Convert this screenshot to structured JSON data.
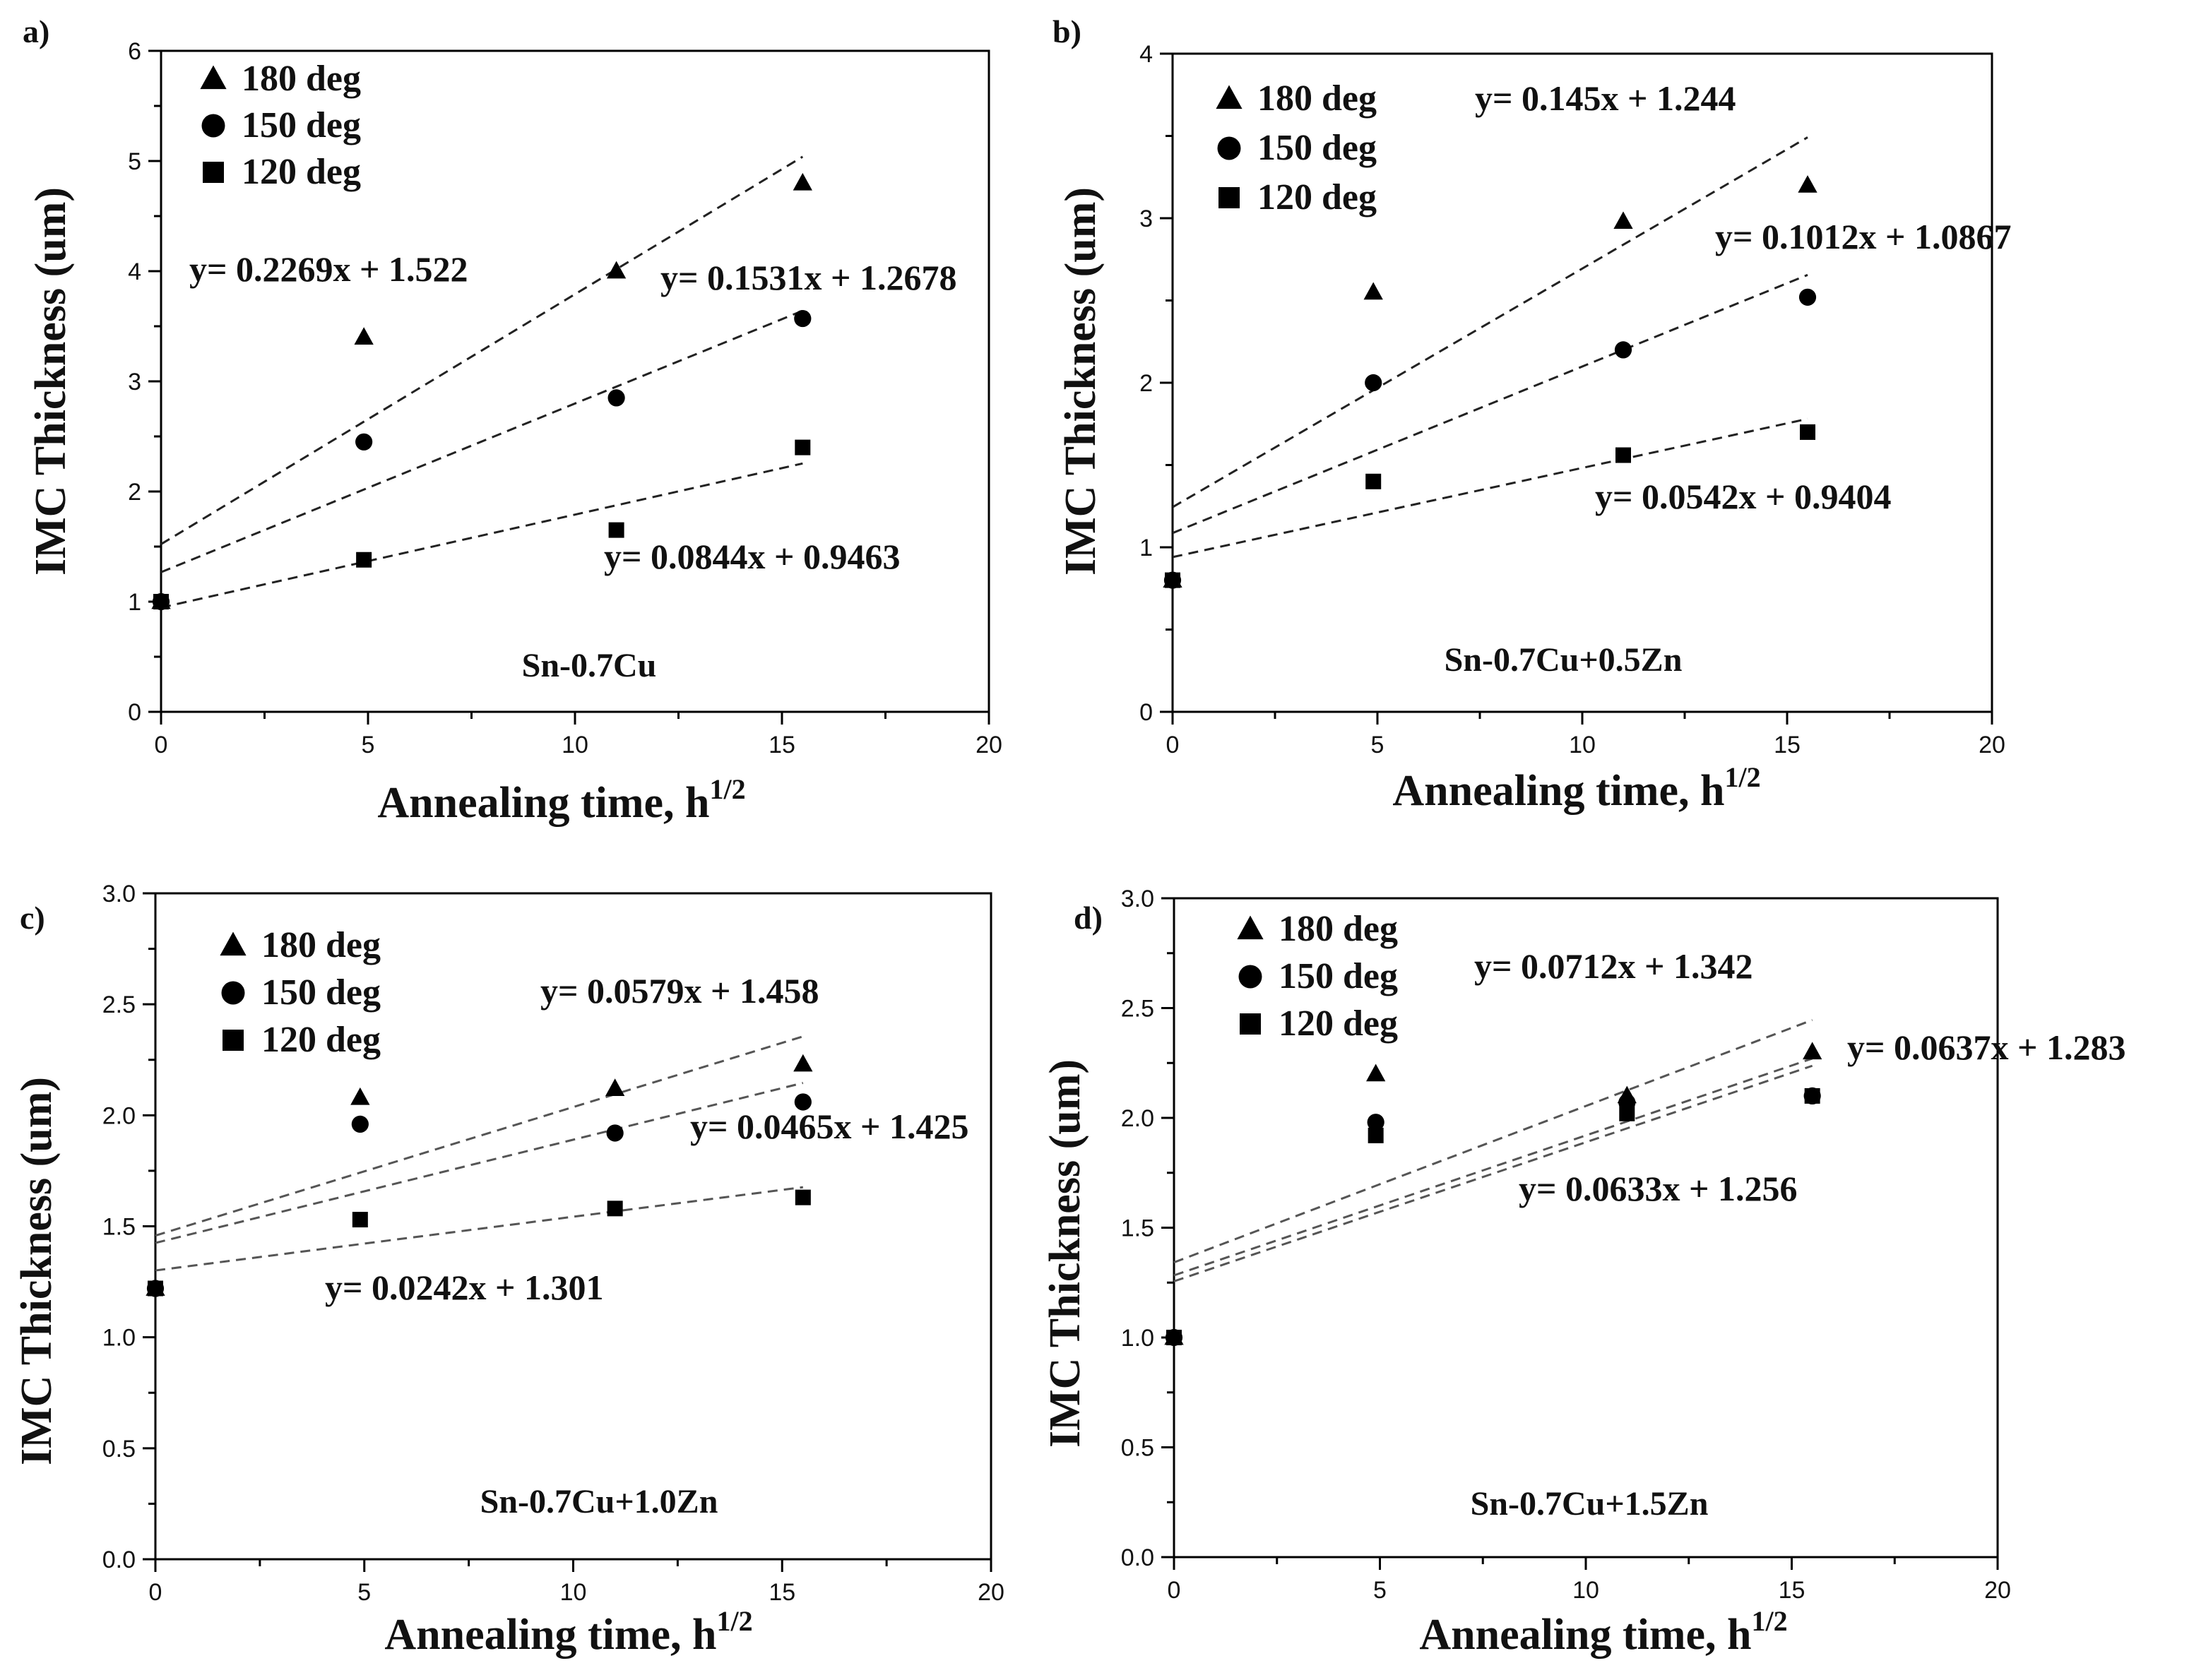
{
  "chart_data": [
    {
      "type": "scatter",
      "panel_label": "a)",
      "title": "Sn-0.7Cu",
      "xlabel": "Annealing time, h",
      "xlabel_sup": "1/2",
      "ylabel": "IMC Thickness (um)",
      "xlim": [
        0,
        20
      ],
      "ylim": [
        0,
        6
      ],
      "xticks": [
        0,
        5,
        10,
        15,
        20
      ],
      "yticks": [
        0,
        1,
        2,
        3,
        4,
        5,
        6
      ],
      "ytick_labels": [
        "0",
        "1",
        "2",
        "3",
        "4",
        "5",
        "6"
      ],
      "legend_position": "top-left",
      "x": [
        0,
        4.9,
        11,
        15.5
      ],
      "series": [
        {
          "name": "180 deg",
          "marker": "triangle",
          "values": [
            1.0,
            3.4,
            4.0,
            4.8
          ],
          "fit": {
            "slope": 0.2269,
            "intercept": 1.522
          },
          "equation": "y= 0.2269x + 1.522"
        },
        {
          "name": "150 deg",
          "marker": "circle",
          "values": [
            1.0,
            2.45,
            2.85,
            3.57
          ],
          "fit": {
            "slope": 0.1531,
            "intercept": 1.2678
          },
          "equation": "y= 0.1531x + 1.2678"
        },
        {
          "name": "120 deg",
          "marker": "square",
          "values": [
            1.0,
            1.38,
            1.65,
            2.4
          ],
          "fit": {
            "slope": 0.0844,
            "intercept": 0.9463
          },
          "equation": "y= 0.0844x + 0.9463"
        }
      ]
    },
    {
      "type": "scatter",
      "panel_label": "b)",
      "title": "Sn-0.7Cu+0.5Zn",
      "xlabel": "Annealing time, h",
      "xlabel_sup": "1/2",
      "ylabel": "IMC Thickness (um)",
      "xlim": [
        0,
        20
      ],
      "ylim": [
        0,
        4
      ],
      "xticks": [
        0,
        5,
        10,
        15,
        20
      ],
      "yticks": [
        0,
        1,
        2,
        3,
        4
      ],
      "ytick_labels": [
        "0",
        "1",
        "2",
        "3",
        "4"
      ],
      "legend_position": "top-left",
      "x": [
        0,
        4.9,
        11,
        15.5
      ],
      "series": [
        {
          "name": "180 deg",
          "marker": "triangle",
          "values": [
            0.8,
            2.55,
            2.98,
            3.2
          ],
          "fit": {
            "slope": 0.145,
            "intercept": 1.244
          },
          "equation": "y= 0.145x + 1.244"
        },
        {
          "name": "150 deg",
          "marker": "circle",
          "values": [
            0.8,
            2.0,
            2.2,
            2.52
          ],
          "fit": {
            "slope": 0.1012,
            "intercept": 1.0867
          },
          "equation": "y= 0.1012x + 1.0867"
        },
        {
          "name": "120 deg",
          "marker": "square",
          "values": [
            0.8,
            1.4,
            1.56,
            1.7
          ],
          "fit": {
            "slope": 0.0542,
            "intercept": 0.9404
          },
          "equation": "y= 0.0542x + 0.9404"
        }
      ]
    },
    {
      "type": "scatter",
      "panel_label": "c)",
      "title": "Sn-0.7Cu+1.0Zn",
      "xlabel": "Annealing time, h",
      "xlabel_sup": "1/2",
      "ylabel": "IMC Thickness (um)",
      "xlim": [
        0,
        20
      ],
      "ylim": [
        0,
        3
      ],
      "xticks": [
        0,
        5,
        10,
        15,
        20
      ],
      "yticks": [
        0,
        0.5,
        1,
        1.5,
        2,
        2.5,
        3
      ],
      "ytick_labels": [
        "0.0",
        "0.5",
        "1.0",
        "1.5",
        "2.0",
        "2.5",
        "3.0"
      ],
      "legend_position": "top-left",
      "x": [
        0,
        4.9,
        11,
        15.5
      ],
      "series": [
        {
          "name": "180 deg",
          "marker": "triangle",
          "values": [
            1.22,
            2.08,
            2.12,
            2.23
          ],
          "fit": {
            "slope": 0.0579,
            "intercept": 1.458
          },
          "equation": "y= 0.0579x + 1.458"
        },
        {
          "name": "150 deg",
          "marker": "circle",
          "values": [
            1.22,
            1.96,
            1.92,
            2.06
          ],
          "fit": {
            "slope": 0.0465,
            "intercept": 1.425
          },
          "equation": "y= 0.0465x + 1.425"
        },
        {
          "name": "120 deg",
          "marker": "square",
          "values": [
            1.22,
            1.53,
            1.58,
            1.63
          ],
          "fit": {
            "slope": 0.0242,
            "intercept": 1.301
          },
          "equation": "y= 0.0242x + 1.301"
        }
      ]
    },
    {
      "type": "scatter",
      "panel_label": "d)",
      "title": "Sn-0.7Cu+1.5Zn",
      "xlabel": "Annealing time, h",
      "xlabel_sup": "1/2",
      "ylabel": "IMC Thickness (um)",
      "xlim": [
        0,
        20
      ],
      "ylim": [
        0,
        3
      ],
      "xticks": [
        0,
        5,
        10,
        15,
        20
      ],
      "yticks": [
        0,
        0.5,
        1,
        1.5,
        2,
        2.5,
        3
      ],
      "ytick_labels": [
        "0.0",
        "0.5",
        "1.0",
        "1.5",
        "2.0",
        "2.5",
        "3.0"
      ],
      "legend_position": "top-left",
      "x": [
        0,
        4.9,
        11,
        15.5
      ],
      "series": [
        {
          "name": "180 deg",
          "marker": "triangle",
          "values": [
            1.0,
            2.2,
            2.1,
            2.3
          ],
          "fit": {
            "slope": 0.0712,
            "intercept": 1.342
          },
          "equation": "y= 0.0712x + 1.342"
        },
        {
          "name": "150 deg",
          "marker": "circle",
          "values": [
            1.0,
            1.98,
            2.07,
            2.1
          ],
          "fit": {
            "slope": 0.0637,
            "intercept": 1.283
          },
          "equation": "y= 0.0637x + 1.283"
        },
        {
          "name": "120 deg",
          "marker": "square",
          "values": [
            1.0,
            1.92,
            2.02,
            2.1
          ],
          "fit": {
            "slope": 0.0633,
            "intercept": 1.256
          },
          "equation": "y= 0.0633x + 1.256"
        }
      ]
    }
  ]
}
